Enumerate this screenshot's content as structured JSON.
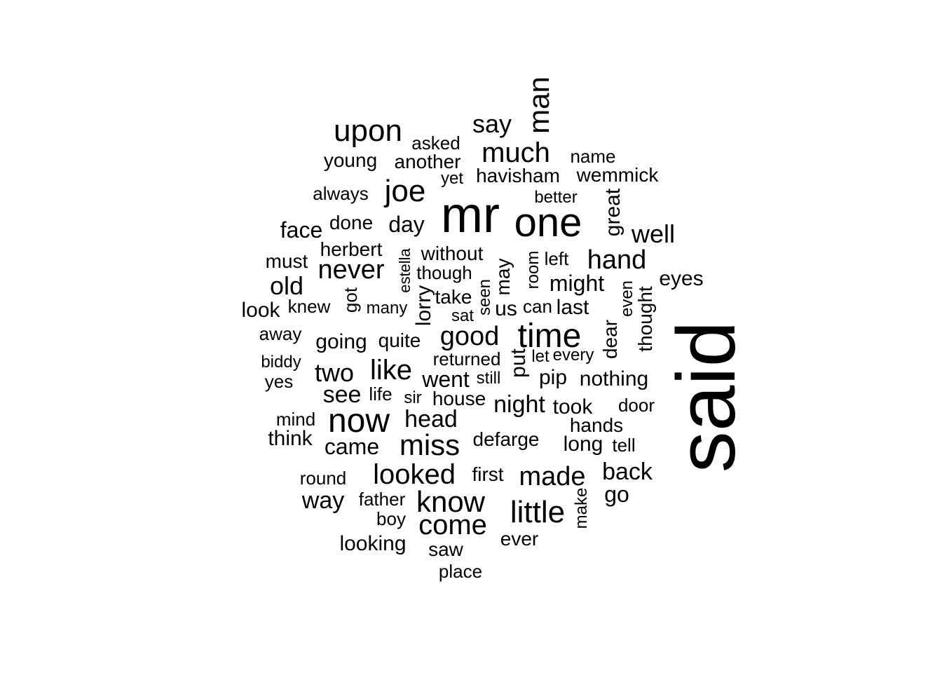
{
  "word_cloud": {
    "color": "#000000",
    "background": "#ffffff",
    "words": [
      {
        "text": "said",
        "vertical": true
      },
      {
        "text": "mr",
        "vertical": false
      },
      {
        "text": "one",
        "vertical": false
      },
      {
        "text": "time",
        "vertical": false
      },
      {
        "text": "now",
        "vertical": false
      },
      {
        "text": "upon",
        "vertical": false
      },
      {
        "text": "joe",
        "vertical": false
      },
      {
        "text": "little",
        "vertical": false
      },
      {
        "text": "man",
        "vertical": true
      },
      {
        "text": "miss",
        "vertical": false
      },
      {
        "text": "know",
        "vertical": false
      },
      {
        "text": "much",
        "vertical": false
      },
      {
        "text": "come",
        "vertical": false
      },
      {
        "text": "looked",
        "vertical": false
      },
      {
        "text": "like",
        "vertical": false
      },
      {
        "text": "good",
        "vertical": false
      },
      {
        "text": "made",
        "vertical": false
      },
      {
        "text": "never",
        "vertical": false
      },
      {
        "text": "hand",
        "vertical": false
      },
      {
        "text": "say",
        "vertical": false
      },
      {
        "text": "well",
        "vertical": false
      },
      {
        "text": "two",
        "vertical": false
      },
      {
        "text": "old",
        "vertical": false
      },
      {
        "text": "night",
        "vertical": false
      },
      {
        "text": "back",
        "vertical": false
      },
      {
        "text": "see",
        "vertical": false
      },
      {
        "text": "head",
        "vertical": false
      },
      {
        "text": "way",
        "vertical": false
      },
      {
        "text": "day",
        "vertical": false
      },
      {
        "text": "great",
        "vertical": true
      },
      {
        "text": "might",
        "vertical": false
      },
      {
        "text": "face",
        "vertical": false
      },
      {
        "text": "went",
        "vertical": false
      },
      {
        "text": "came",
        "vertical": false
      },
      {
        "text": "go",
        "vertical": false
      },
      {
        "text": "dear",
        "vertical": true
      },
      {
        "text": "thought",
        "vertical": true
      },
      {
        "text": "eyes",
        "vertical": false
      },
      {
        "text": "nothing",
        "vertical": false
      },
      {
        "text": "long",
        "vertical": false
      },
      {
        "text": "took",
        "vertical": false
      },
      {
        "text": "think",
        "vertical": false
      },
      {
        "text": "going",
        "vertical": false
      },
      {
        "text": "defarge",
        "vertical": false
      },
      {
        "text": "pip",
        "vertical": false
      },
      {
        "text": "looking",
        "vertical": false
      },
      {
        "text": "another",
        "vertical": false
      },
      {
        "text": "havisham",
        "vertical": false
      },
      {
        "text": "young",
        "vertical": false
      },
      {
        "text": "always",
        "vertical": false
      },
      {
        "text": "done",
        "vertical": false
      },
      {
        "text": "without",
        "vertical": false
      },
      {
        "text": "herbert",
        "vertical": false
      },
      {
        "text": "must",
        "vertical": false
      },
      {
        "text": "look",
        "vertical": false
      },
      {
        "text": "us",
        "vertical": false
      },
      {
        "text": "last",
        "vertical": false
      },
      {
        "text": "lorry",
        "vertical": true
      },
      {
        "text": "put",
        "vertical": true
      },
      {
        "text": "house",
        "vertical": false
      },
      {
        "text": "first",
        "vertical": false
      },
      {
        "text": "wemmick",
        "vertical": false
      },
      {
        "text": "may",
        "vertical": true
      },
      {
        "text": "room",
        "vertical": true
      },
      {
        "text": "hands",
        "vertical": false
      },
      {
        "text": "saw",
        "vertical": false
      },
      {
        "text": "ever",
        "vertical": false
      },
      {
        "text": "door",
        "vertical": false
      },
      {
        "text": "quite",
        "vertical": false
      },
      {
        "text": "got",
        "vertical": true
      },
      {
        "text": "better",
        "vertical": false
      },
      {
        "text": "knew",
        "vertical": false
      },
      {
        "text": "take",
        "vertical": false
      },
      {
        "text": "though",
        "vertical": false
      },
      {
        "text": "name",
        "vertical": false
      },
      {
        "text": "asked",
        "vertical": false
      },
      {
        "text": "away",
        "vertical": false
      },
      {
        "text": "returned",
        "vertical": false
      },
      {
        "text": "every",
        "vertical": false
      },
      {
        "text": "still",
        "vertical": false
      },
      {
        "text": "yes",
        "vertical": false
      },
      {
        "text": "biddy",
        "vertical": false
      },
      {
        "text": "mind",
        "vertical": false
      },
      {
        "text": "round",
        "vertical": false
      },
      {
        "text": "father",
        "vertical": false
      },
      {
        "text": "boy",
        "vertical": false
      },
      {
        "text": "place",
        "vertical": false
      },
      {
        "text": "make",
        "vertical": true
      },
      {
        "text": "tell",
        "vertical": false
      },
      {
        "text": "life",
        "vertical": false
      },
      {
        "text": "left",
        "vertical": false
      },
      {
        "text": "seen",
        "vertical": true
      },
      {
        "text": "estella",
        "vertical": true
      },
      {
        "text": "even",
        "vertical": true
      },
      {
        "text": "yet",
        "vertical": false
      },
      {
        "text": "can",
        "vertical": false
      },
      {
        "text": "let",
        "vertical": false
      },
      {
        "text": "many",
        "vertical": false
      },
      {
        "text": "sat",
        "vertical": false
      },
      {
        "text": "sir",
        "vertical": false
      }
    ]
  }
}
